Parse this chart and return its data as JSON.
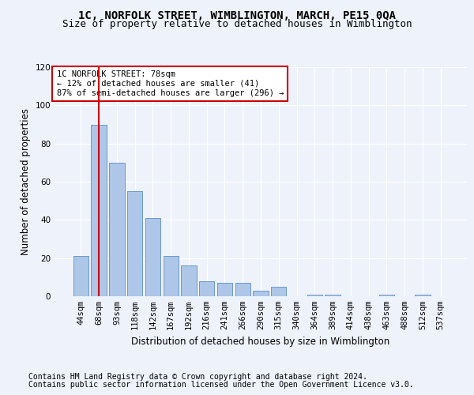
{
  "title1": "1C, NORFOLK STREET, WIMBLINGTON, MARCH, PE15 0QA",
  "title2": "Size of property relative to detached houses in Wimblington",
  "xlabel": "Distribution of detached houses by size in Wimblington",
  "ylabel": "Number of detached properties",
  "categories": [
    "44sqm",
    "68sqm",
    "93sqm",
    "118sqm",
    "142sqm",
    "167sqm",
    "192sqm",
    "216sqm",
    "241sqm",
    "266sqm",
    "290sqm",
    "315sqm",
    "340sqm",
    "364sqm",
    "389sqm",
    "414sqm",
    "438sqm",
    "463sqm",
    "488sqm",
    "512sqm",
    "537sqm"
  ],
  "values": [
    21,
    90,
    70,
    55,
    41,
    21,
    16,
    8,
    7,
    7,
    3,
    5,
    0,
    1,
    1,
    0,
    0,
    1,
    0,
    1,
    0
  ],
  "bar_color": "#aec6e8",
  "bar_edge_color": "#5a8fc2",
  "vline_x": 1,
  "vline_color": "#cc0000",
  "ylim": [
    0,
    120
  ],
  "yticks": [
    0,
    20,
    40,
    60,
    80,
    100,
    120
  ],
  "annotation_box_text": "1C NORFOLK STREET: 78sqm\n← 12% of detached houses are smaller (41)\n87% of semi-detached houses are larger (296) →",
  "footer1": "Contains HM Land Registry data © Crown copyright and database right 2024.",
  "footer2": "Contains public sector information licensed under the Open Government Licence v3.0.",
  "background_color": "#eef2fb",
  "plot_bg_color": "#eef2fb",
  "grid_color": "#ffffff",
  "title_fontsize": 10,
  "subtitle_fontsize": 9,
  "xlabel_fontsize": 8.5,
  "ylabel_fontsize": 8.5,
  "tick_fontsize": 7.5,
  "footer_fontsize": 7,
  "annot_fontsize": 7.5
}
